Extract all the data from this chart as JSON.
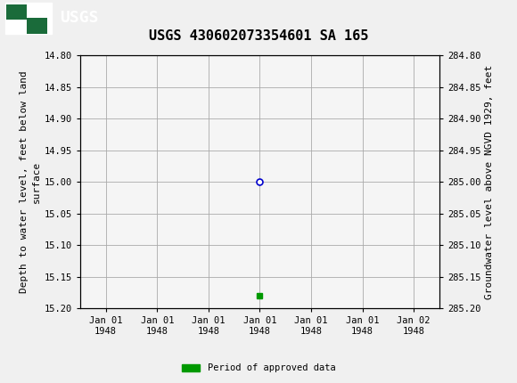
{
  "title": "USGS 430602073354601 SA 165",
  "left_ylabel": "Depth to water level, feet below land\nsurface",
  "right_ylabel": "Groundwater level above NGVD 1929, feet",
  "ylim_left": [
    14.8,
    15.2
  ],
  "ylim_right": [
    285.2,
    284.8
  ],
  "left_yticks": [
    14.8,
    14.85,
    14.9,
    14.95,
    15.0,
    15.05,
    15.1,
    15.15,
    15.2
  ],
  "right_yticks": [
    285.2,
    285.15,
    285.1,
    285.05,
    285.0,
    284.95,
    284.9,
    284.85,
    284.8
  ],
  "data_point_x": 3,
  "data_point_y": 15.0,
  "approved_marker_x": 3,
  "approved_marker_y": 15.18,
  "xlim": [
    -0.5,
    6.5
  ],
  "xtick_positions": [
    0,
    1,
    2,
    3,
    4,
    5,
    6
  ],
  "xtick_labels": [
    "Jan 01\n1948",
    "Jan 01\n1948",
    "Jan 01\n1948",
    "Jan 01\n1948",
    "Jan 01\n1948",
    "Jan 01\n1948",
    "Jan 02\n1948"
  ],
  "background_color": "#f0f0f0",
  "plot_bg_color": "#f5f5f5",
  "grid_color": "#aaaaaa",
  "header_bg_color": "#1a6b3a",
  "header_text_color": "#ffffff",
  "circle_color": "#0000cc",
  "approved_color": "#009900",
  "title_fontsize": 11,
  "tick_fontsize": 7.5,
  "ylabel_fontsize": 8,
  "legend_label": "Period of approved data",
  "font_family": "monospace"
}
